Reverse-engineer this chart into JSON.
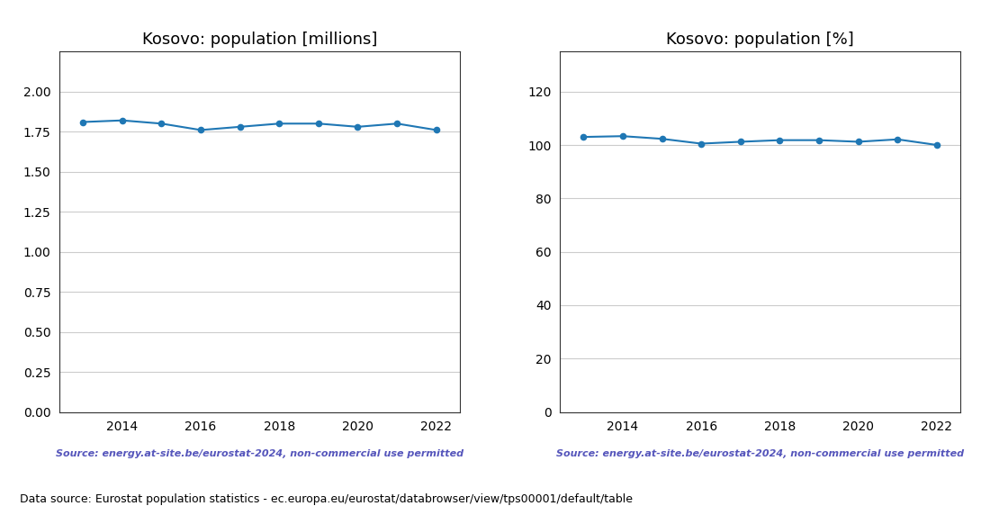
{
  "years": [
    2013,
    2014,
    2015,
    2016,
    2017,
    2018,
    2019,
    2020,
    2021,
    2022
  ],
  "millions": [
    1.81,
    1.82,
    1.8,
    1.76,
    1.78,
    1.8,
    1.8,
    1.78,
    1.8,
    1.76
  ],
  "percent": [
    103.0,
    103.3,
    102.3,
    100.5,
    101.2,
    101.8,
    101.8,
    101.2,
    102.1,
    100.0
  ],
  "title_millions": "Kosovo: population [millions]",
  "title_percent": "Kosovo: population [%]",
  "source_text": "Source: energy.at-site.be/eurostat-2024, non-commercial use permitted",
  "bottom_text": "Data source: Eurostat population statistics - ec.europa.eu/eurostat/databrowser/view/tps00001/default/table",
  "line_color": "#1f77b4",
  "source_color": "#5555bb",
  "bottom_text_color": "#000000",
  "ylim_millions": [
    0.0,
    2.25
  ],
  "ylim_percent": [
    0,
    135
  ],
  "yticks_millions": [
    0.0,
    0.25,
    0.5,
    0.75,
    1.0,
    1.25,
    1.5,
    1.75,
    2.0
  ],
  "yticks_percent": [
    0,
    20,
    40,
    60,
    80,
    100,
    120
  ],
  "xticks_labeled": [
    2014,
    2016,
    2018,
    2020,
    2022
  ],
  "xlim": [
    2012.4,
    2022.6
  ]
}
